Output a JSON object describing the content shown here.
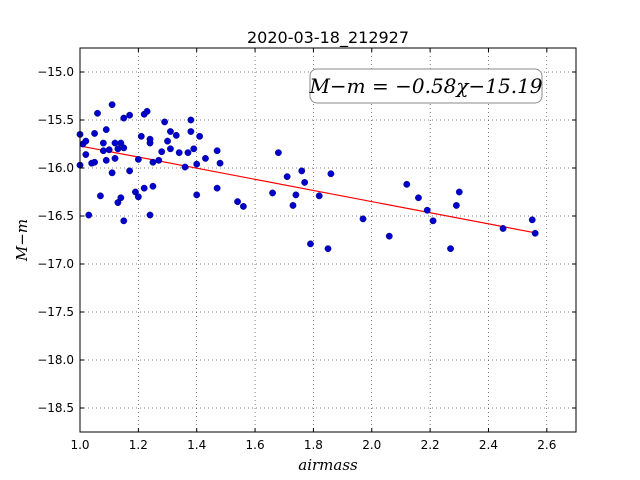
{
  "chart_data": {
    "type": "scatter",
    "title": "2020-03-18_212927",
    "xlabel": "airmass",
    "ylabel": "M−m",
    "xlim": [
      1.0,
      2.7
    ],
    "ylim": [
      -18.75,
      -14.75
    ],
    "xticks": [
      1.0,
      1.2,
      1.4,
      1.6,
      1.8,
      2.0,
      2.2,
      2.4,
      2.6
    ],
    "xtick_labels": [
      "1.0",
      "1.2",
      "1.4",
      "1.6",
      "1.8",
      "2.0",
      "2.2",
      "2.4",
      "2.6"
    ],
    "yticks": [
      -15.0,
      -15.5,
      -16.0,
      -16.5,
      -17.0,
      -17.5,
      -18.0,
      -18.5
    ],
    "ytick_labels": [
      "−15.0",
      "−15.5",
      "−16.0",
      "−16.5",
      "−17.0",
      "−17.5",
      "−18.0",
      "−18.5"
    ],
    "grid": true,
    "annotation": "M−m = −0.58χ−15.19",
    "fit": {
      "slope": -0.58,
      "intercept": -15.19,
      "x_range": [
        1.0,
        2.56
      ],
      "color": "#ff0000"
    },
    "point_color": "#0000cc",
    "points": [
      {
        "x": 1.0,
        "y": -15.65
      },
      {
        "x": 1.0,
        "y": -15.97
      },
      {
        "x": 1.01,
        "y": -15.75
      },
      {
        "x": 1.02,
        "y": -15.72
      },
      {
        "x": 1.02,
        "y": -15.86
      },
      {
        "x": 1.03,
        "y": -16.49
      },
      {
        "x": 1.04,
        "y": -15.95
      },
      {
        "x": 1.05,
        "y": -15.94
      },
      {
        "x": 1.05,
        "y": -15.64
      },
      {
        "x": 1.06,
        "y": -15.43
      },
      {
        "x": 1.07,
        "y": -16.29
      },
      {
        "x": 1.08,
        "y": -15.82
      },
      {
        "x": 1.08,
        "y": -15.74
      },
      {
        "x": 1.09,
        "y": -15.6
      },
      {
        "x": 1.09,
        "y": -15.92
      },
      {
        "x": 1.1,
        "y": -15.81
      },
      {
        "x": 1.11,
        "y": -16.05
      },
      {
        "x": 1.11,
        "y": -15.34
      },
      {
        "x": 1.12,
        "y": -15.74
      },
      {
        "x": 1.12,
        "y": -15.9
      },
      {
        "x": 1.13,
        "y": -16.36
      },
      {
        "x": 1.13,
        "y": -15.8
      },
      {
        "x": 1.14,
        "y": -15.74
      },
      {
        "x": 1.14,
        "y": -16.31
      },
      {
        "x": 1.15,
        "y": -15.79
      },
      {
        "x": 1.15,
        "y": -16.55
      },
      {
        "x": 1.15,
        "y": -15.48
      },
      {
        "x": 1.17,
        "y": -15.45
      },
      {
        "x": 1.17,
        "y": -16.03
      },
      {
        "x": 1.19,
        "y": -16.25
      },
      {
        "x": 1.2,
        "y": -15.91
      },
      {
        "x": 1.2,
        "y": -16.3
      },
      {
        "x": 1.21,
        "y": -15.67
      },
      {
        "x": 1.22,
        "y": -16.21
      },
      {
        "x": 1.22,
        "y": -15.44
      },
      {
        "x": 1.23,
        "y": -15.41
      },
      {
        "x": 1.24,
        "y": -16.49
      },
      {
        "x": 1.24,
        "y": -15.74
      },
      {
        "x": 1.24,
        "y": -15.7
      },
      {
        "x": 1.25,
        "y": -16.19
      },
      {
        "x": 1.25,
        "y": -15.94
      },
      {
        "x": 1.27,
        "y": -15.92
      },
      {
        "x": 1.28,
        "y": -15.83
      },
      {
        "x": 1.29,
        "y": -15.52
      },
      {
        "x": 1.3,
        "y": -15.72
      },
      {
        "x": 1.31,
        "y": -15.8
      },
      {
        "x": 1.31,
        "y": -15.62
      },
      {
        "x": 1.33,
        "y": -15.66
      },
      {
        "x": 1.34,
        "y": -15.84
      },
      {
        "x": 1.36,
        "y": -15.99
      },
      {
        "x": 1.37,
        "y": -15.84
      },
      {
        "x": 1.38,
        "y": -15.62
      },
      {
        "x": 1.38,
        "y": -15.5
      },
      {
        "x": 1.39,
        "y": -15.8
      },
      {
        "x": 1.4,
        "y": -15.96
      },
      {
        "x": 1.4,
        "y": -16.28
      },
      {
        "x": 1.41,
        "y": -15.67
      },
      {
        "x": 1.43,
        "y": -15.9
      },
      {
        "x": 1.47,
        "y": -16.21
      },
      {
        "x": 1.47,
        "y": -15.82
      },
      {
        "x": 1.48,
        "y": -15.95
      },
      {
        "x": 1.54,
        "y": -16.35
      },
      {
        "x": 1.56,
        "y": -16.4
      },
      {
        "x": 1.66,
        "y": -16.26
      },
      {
        "x": 1.68,
        "y": -15.84
      },
      {
        "x": 1.71,
        "y": -16.09
      },
      {
        "x": 1.73,
        "y": -16.39
      },
      {
        "x": 1.74,
        "y": -16.28
      },
      {
        "x": 1.76,
        "y": -16.03
      },
      {
        "x": 1.77,
        "y": -16.15
      },
      {
        "x": 1.79,
        "y": -16.79
      },
      {
        "x": 1.82,
        "y": -16.29
      },
      {
        "x": 1.85,
        "y": -16.84
      },
      {
        "x": 1.86,
        "y": -16.06
      },
      {
        "x": 1.97,
        "y": -16.53
      },
      {
        "x": 2.06,
        "y": -16.71
      },
      {
        "x": 2.12,
        "y": -16.17
      },
      {
        "x": 2.16,
        "y": -16.31
      },
      {
        "x": 2.19,
        "y": -16.44
      },
      {
        "x": 2.21,
        "y": -16.55
      },
      {
        "x": 2.27,
        "y": -16.84
      },
      {
        "x": 2.29,
        "y": -16.39
      },
      {
        "x": 2.3,
        "y": -16.25
      },
      {
        "x": 2.45,
        "y": -16.63
      },
      {
        "x": 2.55,
        "y": -16.54
      },
      {
        "x": 2.56,
        "y": -16.68
      }
    ]
  }
}
